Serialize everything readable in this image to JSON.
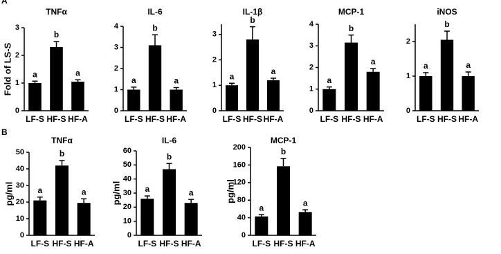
{
  "panel_labels": [
    "A",
    "B"
  ],
  "chart_data": [
    {
      "type": "bar",
      "title": "TNFα",
      "ylabel": "Fold of LS-S",
      "categories": [
        "LF-S",
        "HF-S",
        "HF-A"
      ],
      "values": [
        1.0,
        2.3,
        1.05
      ],
      "errors": [
        0.07,
        0.2,
        0.07
      ],
      "annotations": [
        "a",
        "b",
        "a"
      ],
      "color": "#000000",
      "ylim": [
        0,
        3
      ],
      "yticks": [
        0,
        1,
        2,
        3
      ]
    },
    {
      "type": "bar",
      "title": "IL-6",
      "categories": [
        "LF-S",
        "HF-S",
        "HF-A"
      ],
      "values": [
        1.0,
        3.1,
        1.0
      ],
      "errors": [
        0.12,
        0.5,
        0.1
      ],
      "annotations": [
        "a",
        "b",
        "a"
      ],
      "color": "#000000",
      "ylim": [
        0,
        4
      ],
      "yticks": [
        0,
        1,
        2,
        3,
        4
      ]
    },
    {
      "type": "bar",
      "title": "IL-1β",
      "categories": [
        "LF-S",
        "HF-S",
        "HF-A"
      ],
      "values": [
        1.0,
        2.8,
        1.2
      ],
      "errors": [
        0.08,
        0.5,
        0.08
      ],
      "annotations": [
        "a",
        "b",
        "a"
      ],
      "color": "#000000",
      "ylim": [
        0,
        3.4
      ],
      "yticks": [
        0,
        1,
        2,
        3
      ]
    },
    {
      "type": "bar",
      "title": "MCP-1",
      "categories": [
        "LF-S",
        "HF-S",
        "HF-A"
      ],
      "values": [
        1.0,
        3.15,
        1.8
      ],
      "errors": [
        0.1,
        0.35,
        0.15
      ],
      "annotations": [
        "a",
        "b",
        "a"
      ],
      "color": "#000000",
      "ylim": [
        0,
        4
      ],
      "yticks": [
        0,
        1,
        2,
        3,
        4
      ]
    },
    {
      "type": "bar",
      "title": "iNOS",
      "categories": [
        "LF-S",
        "HF-S",
        "HF-A"
      ],
      "values": [
        1.0,
        2.05,
        1.0
      ],
      "errors": [
        0.1,
        0.25,
        0.12
      ],
      "annotations": [
        "a",
        "b",
        "a"
      ],
      "color": "#000000",
      "ylim": [
        0,
        2.5
      ],
      "yticks": [
        0,
        1,
        2
      ]
    },
    {
      "type": "bar",
      "title": "TNFα",
      "ylabel": "pg/ml",
      "categories": [
        "LF-S",
        "HF-S",
        "HF-A"
      ],
      "values": [
        21,
        42,
        19.5
      ],
      "errors": [
        2,
        3,
        2.5
      ],
      "annotations": [
        "a",
        "b",
        "a"
      ],
      "color": "#000000",
      "ylim": [
        0,
        50
      ],
      "yticks": [
        0,
        10,
        20,
        30,
        40,
        50
      ]
    },
    {
      "type": "bar",
      "title": "IL-6",
      "ylabel": "pg/ml",
      "categories": [
        "LF-S",
        "HF-S",
        "HF-A"
      ],
      "values": [
        26,
        47,
        23
      ],
      "errors": [
        2,
        4,
        2.5
      ],
      "annotations": [
        "a",
        "b",
        "a"
      ],
      "color": "#000000",
      "ylim": [
        0,
        60
      ],
      "yticks": [
        0,
        10,
        20,
        30,
        40,
        50,
        60
      ]
    },
    {
      "type": "bar",
      "title": "MCP-1",
      "ylabel": "pg/ml",
      "categories": [
        "LF-S",
        "HF-S",
        "HF-A"
      ],
      "values": [
        43,
        157,
        53
      ],
      "errors": [
        4,
        18,
        5
      ],
      "annotations": [
        "a",
        "b",
        "a"
      ],
      "color": "#000000",
      "ylim": [
        0,
        200
      ],
      "yticks": [
        0,
        40,
        80,
        120,
        160,
        200
      ]
    }
  ]
}
